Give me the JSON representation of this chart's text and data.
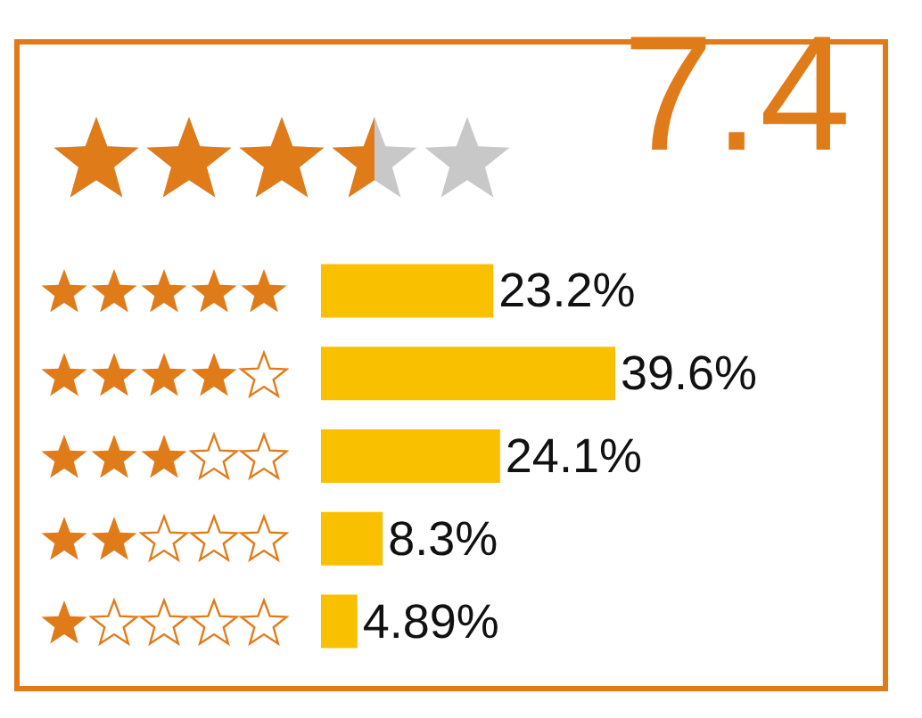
{
  "chart_data": {
    "type": "bar",
    "orientation": "horizontal",
    "title": "7.4",
    "categories": [
      null,
      null,
      null,
      null,
      null
    ],
    "values": [
      23.2,
      39.6,
      24.1,
      8.3,
      4.89
    ],
    "value_labels": [
      "23.2%",
      "39.6%",
      "24.1%",
      "8.3%",
      "4.89%"
    ],
    "color": "#f9c000",
    "tick_labels": false
  }
}
